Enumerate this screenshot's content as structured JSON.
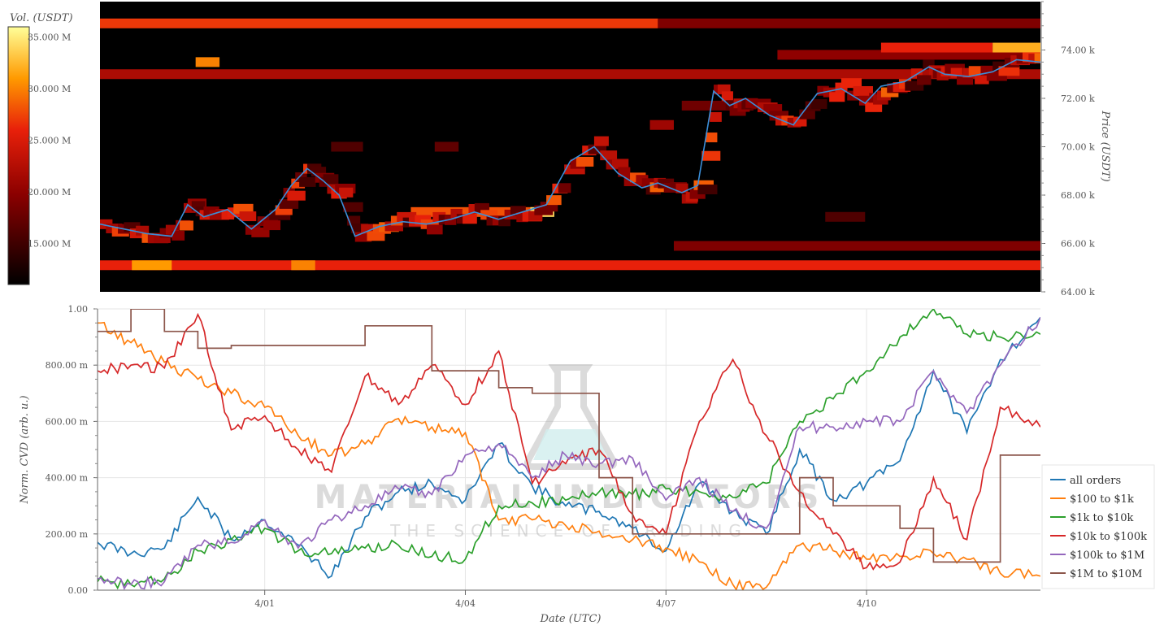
{
  "chart_data": [
    {
      "type": "heatmap",
      "colorbar": {
        "title": "Vol. (USDT)",
        "ticks": [
          "15.000 M",
          "20.000 M",
          "25.000 M",
          "30.000 M",
          "35.000 M"
        ],
        "tick_values": [
          15,
          20,
          25,
          30,
          35
        ],
        "range": [
          11.0,
          36.0
        ],
        "colorscale": "hot"
      },
      "price_axis": {
        "title": "Price (USDT)",
        "ticks": [
          "64.00 k",
          "66.00 k",
          "68.00 k",
          "70.00 k",
          "72.00 k",
          "74.00 k"
        ],
        "tick_values": [
          64,
          66,
          68,
          70,
          72,
          74
        ],
        "range": [
          64.0,
          76.0
        ]
      },
      "time_range_days": [
        0,
        11.8
      ],
      "price_series": {
        "name": "price",
        "color": "#3b8fd9",
        "t": [
          0,
          0.3,
          0.6,
          0.9,
          1.1,
          1.3,
          1.6,
          1.9,
          2.2,
          2.4,
          2.6,
          2.8,
          3.0,
          3.2,
          3.5,
          3.8,
          4.1,
          4.4,
          4.7,
          5.0,
          5.3,
          5.6,
          5.9,
          6.2,
          6.5,
          6.8,
          7.0,
          7.3,
          7.5,
          7.7,
          7.9,
          8.1,
          8.4,
          8.7,
          9.0,
          9.3,
          9.6,
          9.8,
          10.1,
          10.4,
          10.6,
          10.9,
          11.2,
          11.5,
          11.8
        ],
        "values": [
          66.8,
          66.6,
          66.4,
          66.3,
          67.6,
          67.1,
          67.4,
          66.6,
          67.4,
          68.4,
          69.1,
          68.6,
          68.0,
          66.3,
          66.7,
          66.9,
          66.8,
          67.0,
          67.3,
          67.0,
          67.3,
          67.6,
          69.4,
          70.0,
          68.9,
          68.3,
          68.5,
          68.1,
          68.4,
          72.3,
          71.7,
          72.0,
          71.3,
          70.9,
          72.2,
          72.4,
          71.8,
          72.5,
          72.7,
          73.3,
          73.0,
          72.9,
          73.1,
          73.6,
          73.5
        ]
      },
      "volume_bands": [
        {
          "price": 75.1,
          "t0": 0.0,
          "t1": 7.0,
          "vol": 27
        },
        {
          "price": 75.1,
          "t0": 7.0,
          "t1": 11.8,
          "vol": 19
        },
        {
          "price": 73.0,
          "t0": 0.0,
          "t1": 11.8,
          "vol": 22
        },
        {
          "price": 73.8,
          "t0": 8.5,
          "t1": 11.8,
          "vol": 20
        },
        {
          "price": 74.1,
          "t0": 9.8,
          "t1": 11.2,
          "vol": 26
        },
        {
          "price": 74.1,
          "t0": 11.2,
          "t1": 11.8,
          "vol": 32
        },
        {
          "price": 65.1,
          "t0": 0.0,
          "t1": 11.8,
          "vol": 26
        },
        {
          "price": 65.1,
          "t0": 0.4,
          "t1": 0.9,
          "vol": 31
        },
        {
          "price": 65.1,
          "t0": 2.4,
          "t1": 2.7,
          "vol": 30
        },
        {
          "price": 65.9,
          "t0": 7.2,
          "t1": 11.8,
          "vol": 19
        },
        {
          "price": 67.3,
          "t0": 3.9,
          "t1": 5.5,
          "vol": 28
        },
        {
          "price": 67.3,
          "t0": 5.4,
          "t1": 5.7,
          "vol": 34
        },
        {
          "price": 73.5,
          "t0": 1.2,
          "t1": 1.5,
          "vol": 30
        },
        {
          "price": 71.7,
          "t0": 7.3,
          "t1": 8.2,
          "vol": 18
        },
        {
          "price": 70.9,
          "t0": 6.9,
          "t1": 7.2,
          "vol": 21
        },
        {
          "price": 70.0,
          "t0": 4.2,
          "t1": 4.5,
          "vol": 17
        },
        {
          "price": 70.0,
          "t0": 2.9,
          "t1": 3.3,
          "vol": 16
        },
        {
          "price": 67.1,
          "t0": 9.1,
          "t1": 9.6,
          "vol": 16
        }
      ]
    },
    {
      "type": "line",
      "title": "",
      "xlabel": "Date (UTC)",
      "ylabel": "Norm. CVD (arb. u.)",
      "x_ticks": [
        "4/01",
        "4/04",
        "4/07",
        "4/10"
      ],
      "x_tick_days": [
        2.5,
        5.5,
        8.5,
        11.5
      ],
      "x_range_days": [
        0,
        14.1
      ],
      "y_ticks": [
        "0.00",
        "200.00 m",
        "400.00 m",
        "600.00 m",
        "800.00 m",
        "1.00"
      ],
      "y_tick_values": [
        0,
        0.2,
        0.4,
        0.6,
        0.8,
        1.0
      ],
      "ylim": [
        0,
        1.0
      ],
      "grid": true,
      "legend_position": "bottom-right",
      "x": [
        0,
        0.5,
        1.0,
        1.5,
        2.0,
        2.5,
        3.0,
        3.5,
        4.0,
        4.5,
        5.0,
        5.5,
        6.0,
        6.5,
        7.0,
        7.5,
        8.0,
        8.5,
        9.0,
        9.5,
        10.0,
        10.5,
        11.0,
        11.5,
        12.0,
        12.5,
        13.0,
        13.5,
        14.1
      ],
      "series": [
        {
          "name": "all orders",
          "color": "#1f77b4",
          "values": [
            0.17,
            0.13,
            0.15,
            0.33,
            0.18,
            0.25,
            0.16,
            0.05,
            0.26,
            0.35,
            0.38,
            0.32,
            0.52,
            0.37,
            0.3,
            0.28,
            0.22,
            0.14,
            0.38,
            0.28,
            0.2,
            0.5,
            0.32,
            0.38,
            0.46,
            0.78,
            0.56,
            0.82,
            0.97
          ]
        },
        {
          "name": "$100 to $1k",
          "color": "#ff7f0e",
          "values": [
            0.95,
            0.88,
            0.81,
            0.75,
            0.7,
            0.65,
            0.55,
            0.48,
            0.52,
            0.61,
            0.58,
            0.56,
            0.25,
            0.25,
            0.23,
            0.21,
            0.18,
            0.15,
            0.1,
            0.02,
            0.01,
            0.16,
            0.14,
            0.11,
            0.12,
            0.13,
            0.11,
            0.06,
            0.05
          ]
        },
        {
          "name": "$1k to $10k",
          "color": "#2ca02c",
          "values": [
            0.03,
            0.02,
            0.04,
            0.14,
            0.18,
            0.22,
            0.14,
            0.13,
            0.15,
            0.16,
            0.12,
            0.11,
            0.3,
            0.31,
            0.32,
            0.35,
            0.34,
            0.36,
            0.35,
            0.33,
            0.38,
            0.6,
            0.68,
            0.78,
            0.9,
            1.0,
            0.91,
            0.9,
            0.91
          ]
        },
        {
          "name": "$10k to $100k",
          "color": "#d62728",
          "values": [
            0.78,
            0.8,
            0.79,
            0.98,
            0.57,
            0.62,
            0.5,
            0.42,
            0.76,
            0.66,
            0.8,
            0.66,
            0.85,
            0.38,
            0.45,
            0.5,
            0.27,
            0.2,
            0.6,
            0.82,
            0.55,
            0.35,
            0.2,
            0.08,
            0.1,
            0.4,
            0.18,
            0.65,
            0.58
          ]
        },
        {
          "name": "$100k to $1M",
          "color": "#9467bd",
          "values": [
            0.04,
            0.02,
            0.03,
            0.16,
            0.17,
            0.25,
            0.15,
            0.25,
            0.3,
            0.36,
            0.34,
            0.48,
            0.52,
            0.4,
            0.48,
            0.45,
            0.47,
            0.32,
            0.4,
            0.28,
            0.22,
            0.58,
            0.58,
            0.6,
            0.6,
            0.78,
            0.63,
            0.8,
            0.97
          ]
        },
        {
          "name": "$1M to $10M",
          "color": "#8c564b",
          "values": [
            0.92,
            1.0,
            0.92,
            0.86,
            0.87,
            0.87,
            0.87,
            0.87,
            0.94,
            0.94,
            0.78,
            0.78,
            0.72,
            0.7,
            0.7,
            0.4,
            0.2,
            0.2,
            0.2,
            0.2,
            0.2,
            0.4,
            0.3,
            0.3,
            0.22,
            0.1,
            0.1,
            0.48,
            0.48
          ]
        }
      ]
    }
  ],
  "watermark": {
    "title": "MATERIAL INDICATORS",
    "subtitle": "THE SCIENCE OF TRADING"
  },
  "colors": {
    "heatmap_background": "#000000",
    "grid": "#e6e6e6"
  }
}
